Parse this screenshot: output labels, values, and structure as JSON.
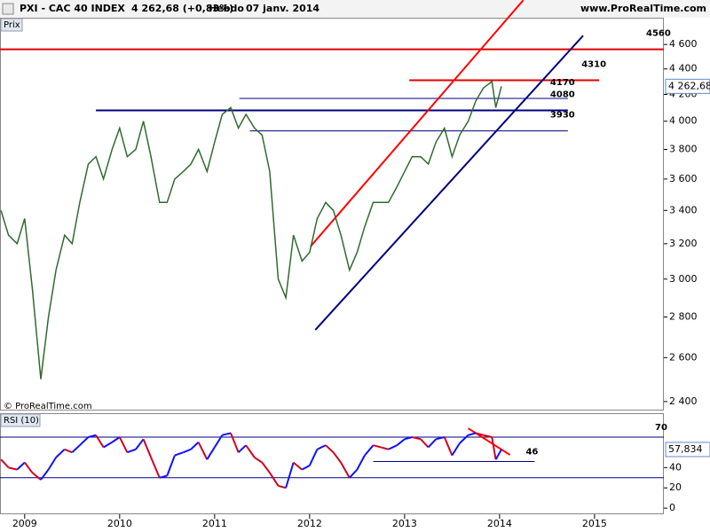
{
  "header": {
    "symbol": "PXI - CAC 40 INDEX",
    "quote": "4 262,68 (+0,83%)",
    "period": "Hebdo",
    "date": "07 janv. 2014",
    "site": "www.ProRealTime.com"
  },
  "chart_data": [
    {
      "type": "line",
      "panel_label": "Prix",
      "copyright": "© ProRealTime.com",
      "log_scale": true,
      "x": [
        2008.75,
        2008.83,
        2008.92,
        2009,
        2009.08,
        2009.17,
        2009.25,
        2009.33,
        2009.42,
        2009.5,
        2009.58,
        2009.67,
        2009.75,
        2009.83,
        2009.92,
        2010,
        2010.08,
        2010.17,
        2010.25,
        2010.33,
        2010.42,
        2010.5,
        2010.58,
        2010.67,
        2010.75,
        2010.83,
        2010.92,
        2011,
        2011.08,
        2011.17,
        2011.25,
        2011.33,
        2011.42,
        2011.5,
        2011.58,
        2011.67,
        2011.75,
        2011.83,
        2011.92,
        2012,
        2012.08,
        2012.17,
        2012.25,
        2012.33,
        2012.42,
        2012.5,
        2012.58,
        2012.67,
        2012.75,
        2012.83,
        2012.92,
        2013,
        2013.08,
        2013.17,
        2013.25,
        2013.33,
        2013.42,
        2013.5,
        2013.58,
        2013.67,
        2013.75,
        2013.83,
        2013.92,
        2013.96,
        2014.02
      ],
      "series": [
        {
          "name": "PXI",
          "color": "#2f6b2f",
          "values": [
            3400,
            3250,
            3200,
            3350,
            2950,
            2500,
            2800,
            3050,
            3250,
            3200,
            3450,
            3700,
            3750,
            3600,
            3800,
            3950,
            3750,
            3800,
            4000,
            3750,
            3450,
            3450,
            3600,
            3650,
            3700,
            3800,
            3650,
            3850,
            4050,
            4100,
            3950,
            4050,
            3950,
            3900,
            3650,
            3000,
            2900,
            3250,
            3100,
            3150,
            3350,
            3450,
            3400,
            3250,
            3050,
            3150,
            3300,
            3450,
            3450,
            3450,
            3550,
            3650,
            3750,
            3750,
            3700,
            3850,
            3950,
            3750,
            3900,
            4000,
            4150,
            4250,
            4300,
            4100,
            4262.68
          ]
        }
      ],
      "last": {
        "value": 4262.68,
        "label": "4 262,68"
      },
      "levels": [
        {
          "value": 4560,
          "label": "4560",
          "color": "#e00000",
          "x": [
            2008.74,
            2015.73
          ]
        },
        {
          "value": 4310,
          "label": "4310",
          "color": "#e00000",
          "x": [
            2013.05,
            2015.05
          ]
        },
        {
          "value": 4170,
          "label": "4170",
          "color": "#000080",
          "x": [
            2011.26,
            2014.72
          ]
        },
        {
          "value": 4080,
          "label": "4080",
          "color": "#000080",
          "x": [
            2009.75,
            2014.72
          ]
        },
        {
          "value": 3930,
          "label": "3930",
          "color": "#000080",
          "x": [
            2011.37,
            2014.72
          ]
        }
      ],
      "trendlines": [
        {
          "color": "#ff0000",
          "x": [
            2012.01,
            2014.25
          ],
          "y": [
            3184,
            4987
          ]
        },
        {
          "color": "#000080",
          "x": [
            2012.06,
            2014.88
          ],
          "y": [
            2735,
            4675
          ]
        }
      ],
      "xlim": [
        2008.74,
        2015.73
      ],
      "ylim": [
        2365,
        4830
      ],
      "yticks": [
        {
          "value": 4600,
          "label": "4 600"
        },
        {
          "value": 4400,
          "label": "4 400"
        },
        {
          "value": 4200,
          "label": "4 200"
        },
        {
          "value": 4000,
          "label": "4 000"
        },
        {
          "value": 3800,
          "label": "3 800"
        },
        {
          "value": 3600,
          "label": "3 600"
        },
        {
          "value": 3400,
          "label": "3 400"
        },
        {
          "value": 3200,
          "label": "3 200"
        },
        {
          "value": 3000,
          "label": "3 000"
        },
        {
          "value": 2800,
          "label": "2 800"
        },
        {
          "value": 2600,
          "label": "2 600"
        },
        {
          "value": 2400,
          "label": "2 400"
        }
      ]
    },
    {
      "type": "line",
      "panel_label": "RSI (10)",
      "x": [
        2008.75,
        2008.83,
        2008.92,
        2009,
        2009.08,
        2009.17,
        2009.25,
        2009.33,
        2009.42,
        2009.5,
        2009.58,
        2009.67,
        2009.75,
        2009.83,
        2009.92,
        2010,
        2010.08,
        2010.17,
        2010.25,
        2010.33,
        2010.42,
        2010.5,
        2010.58,
        2010.67,
        2010.75,
        2010.83,
        2010.92,
        2011,
        2011.08,
        2011.17,
        2011.25,
        2011.33,
        2011.42,
        2011.5,
        2011.58,
        2011.67,
        2011.75,
        2011.83,
        2011.92,
        2012,
        2012.08,
        2012.17,
        2012.25,
        2012.33,
        2012.42,
        2012.5,
        2012.58,
        2012.67,
        2012.75,
        2012.83,
        2012.92,
        2013,
        2013.08,
        2013.17,
        2013.25,
        2013.33,
        2013.42,
        2013.5,
        2013.58,
        2013.67,
        2013.75,
        2013.83,
        2013.92,
        2013.96,
        2014.02
      ],
      "series": [
        {
          "name": "RSI",
          "color": "#1010ff",
          "down_color": "#d00020",
          "values": [
            48,
            40,
            38,
            45,
            35,
            28,
            38,
            50,
            58,
            55,
            62,
            70,
            72,
            60,
            65,
            70,
            55,
            58,
            68,
            50,
            30,
            32,
            52,
            55,
            58,
            65,
            48,
            60,
            72,
            74,
            55,
            62,
            50,
            45,
            35,
            22,
            20,
            45,
            38,
            42,
            58,
            62,
            55,
            45,
            30,
            38,
            52,
            62,
            60,
            58,
            62,
            68,
            70,
            68,
            60,
            68,
            70,
            52,
            64,
            72,
            74,
            72,
            70,
            48,
            57.834
          ]
        }
      ],
      "last": {
        "value": 57.834,
        "label": "57,834"
      },
      "levels": [
        {
          "value": 70,
          "label": "70",
          "color": "#000080",
          "x": [
            2008.74,
            2015.73
          ]
        },
        {
          "value": 46,
          "label": "46",
          "color": "#000080",
          "x": [
            2012.67,
            2014.37
          ]
        },
        {
          "value": 30,
          "color": "#000080",
          "x": [
            2008.74,
            2015.73
          ]
        }
      ],
      "trendlines": [
        {
          "color": "#ff0000",
          "x": [
            2013.67,
            2014.11
          ],
          "y": [
            78.7,
            52.5
          ]
        }
      ],
      "xlim": [
        2008.74,
        2015.73
      ],
      "ylim": [
        -6,
        93.6
      ],
      "yticks": [
        0,
        20,
        40
      ],
      "xticks": [
        2009,
        2010,
        2011,
        2012,
        2013,
        2014,
        2015
      ]
    }
  ]
}
